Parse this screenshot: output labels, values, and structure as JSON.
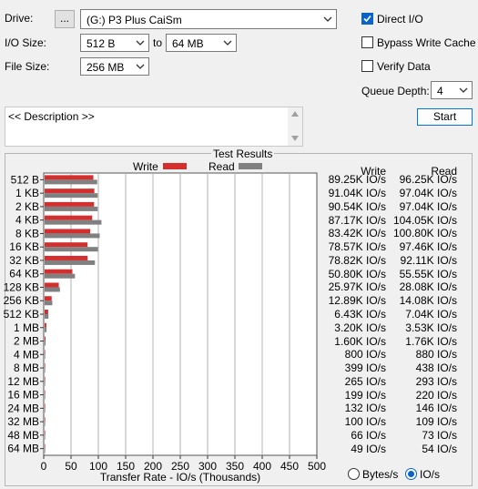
{
  "controls": {
    "drive_label": "Drive:",
    "browse_label": "...",
    "drive_value": "(G:) P3 Plus CaiSm",
    "io_size_label": "I/O Size:",
    "io_size_from": "512 B",
    "to_label": "to",
    "io_size_to": "64 MB",
    "file_size_label": "File Size:",
    "file_size": "256 MB",
    "direct_io_label": "Direct I/O",
    "direct_io_checked": true,
    "bypass_cache_label": "Bypass Write Cache",
    "bypass_cache_checked": false,
    "verify_label": "Verify Data",
    "verify_checked": false,
    "queue_depth_label": "Queue Depth:",
    "queue_depth": "4",
    "start_label": "Start",
    "description": "<< Description >>"
  },
  "results": {
    "title": "Test Results",
    "write_header": "Write",
    "read_header": "Read",
    "bytes_label": "Bytes/s",
    "ios_label": "IO/s",
    "selected_unit": "IO/s",
    "write_values": [
      "89.25K IO/s",
      "91.04K IO/s",
      "90.54K IO/s",
      "87.17K IO/s",
      "83.42K IO/s",
      "78.57K IO/s",
      "78.82K IO/s",
      "50.80K IO/s",
      "25.97K IO/s",
      "12.89K IO/s",
      "6.43K IO/s",
      "3.20K IO/s",
      "1.60K IO/s",
      "800 IO/s",
      "399 IO/s",
      "265 IO/s",
      "199 IO/s",
      "132 IO/s",
      "100 IO/s",
      "66 IO/s",
      "49 IO/s"
    ],
    "read_values": [
      "96.25K IO/s",
      "97.04K IO/s",
      "97.04K IO/s",
      "104.05K IO/s",
      "100.80K IO/s",
      "97.46K IO/s",
      "92.11K IO/s",
      "55.55K IO/s",
      "28.08K IO/s",
      "14.08K IO/s",
      "7.04K IO/s",
      "3.53K IO/s",
      "1.76K IO/s",
      "880 IO/s",
      "438 IO/s",
      "293 IO/s",
      "220 IO/s",
      "146 IO/s",
      "109 IO/s",
      "73 IO/s",
      "54 IO/s"
    ]
  },
  "colors": {
    "write": "#d32f2f",
    "read": "#808080",
    "accent": "#0a64c8"
  },
  "chart_data": {
    "type": "bar",
    "orientation": "horizontal",
    "categories": [
      "512 B",
      "1 KB",
      "2 KB",
      "4 KB",
      "8 KB",
      "16 KB",
      "32 KB",
      "64 KB",
      "128 KB",
      "256 KB",
      "512 KB",
      "1 MB",
      "2 MB",
      "4 MB",
      "8 MB",
      "12 MB",
      "16 MB",
      "24 MB",
      "32 MB",
      "48 MB",
      "64 MB"
    ],
    "series": [
      {
        "name": "Write",
        "values": [
          89.25,
          91.04,
          90.54,
          87.17,
          83.42,
          78.57,
          78.82,
          50.8,
          25.97,
          12.89,
          6.43,
          3.2,
          1.6,
          0.8,
          0.399,
          0.265,
          0.199,
          0.132,
          0.1,
          0.066,
          0.049
        ]
      },
      {
        "name": "Read",
        "values": [
          96.25,
          97.04,
          97.04,
          104.05,
          100.8,
          97.46,
          92.11,
          55.55,
          28.08,
          14.08,
          7.04,
          3.53,
          1.76,
          0.88,
          0.438,
          0.293,
          0.22,
          0.146,
          0.109,
          0.073,
          0.054
        ]
      }
    ],
    "title": "Test Results",
    "xlabel": "Transfer Rate - IO/s (Thousands)",
    "ylabel": "",
    "xlim": [
      0,
      500
    ],
    "xticks": [
      "0",
      "50",
      "100",
      "150",
      "200",
      "250",
      "300",
      "350",
      "400",
      "450",
      "500"
    ],
    "grid": true,
    "legend": "top"
  }
}
